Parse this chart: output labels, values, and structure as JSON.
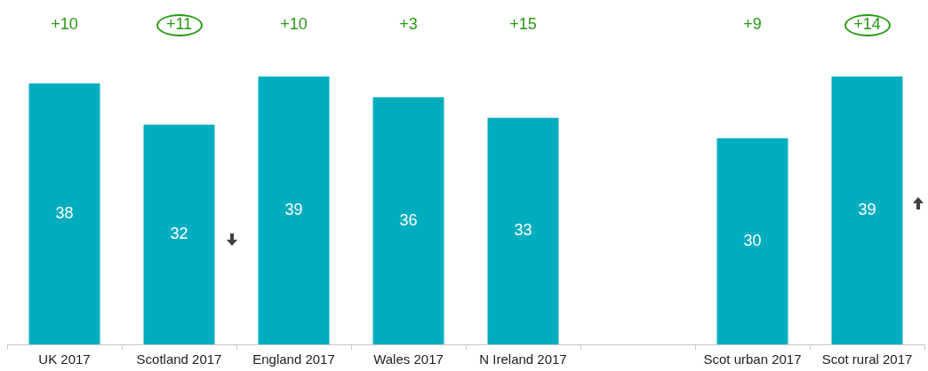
{
  "chart_data": {
    "type": "bar",
    "categories": [
      "UK 2017",
      "Scotland 2017",
      "England 2017",
      "Wales 2017",
      "N Ireland 2017",
      null,
      "Scot urban 2017",
      "Scot rural 2017"
    ],
    "values": [
      38,
      32,
      39,
      36,
      33,
      null,
      30,
      39
    ],
    "color": "#00adbe",
    "data_labels": true,
    "grid": false,
    "legend": false,
    "annotations": [
      "+10",
      "+11",
      "+10",
      "+3",
      "+15",
      "+9",
      "+14"
    ]
  }
}
